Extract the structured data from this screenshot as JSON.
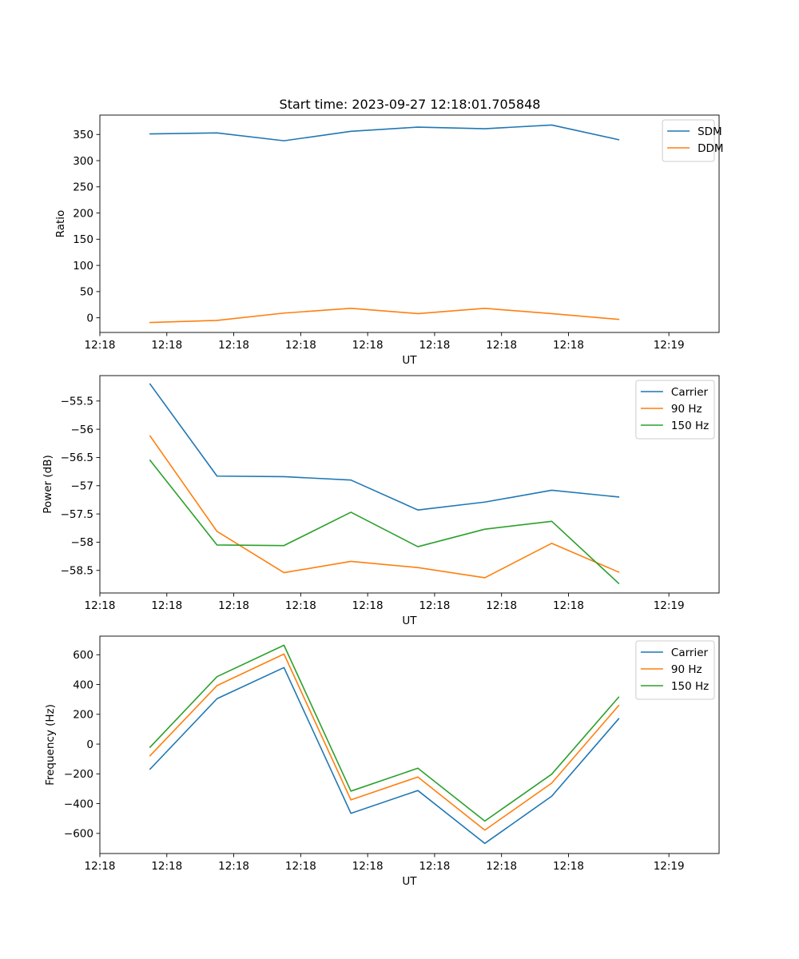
{
  "chart_data": [
    {
      "type": "line",
      "title": "Start time: 2023-09-27 12:18:01.705848",
      "xlabel": "UT",
      "ylabel": "Ratio",
      "x_tick_labels": [
        "12:18",
        "12:18",
        "12:18",
        "12:18",
        "12:18",
        "12:18",
        "12:18"
      ],
      "x_tick_end_label": "12:19",
      "xlim": [
        0,
        9.25
      ],
      "x": [
        0.75,
        1.75,
        2.75,
        3.75,
        4.75,
        5.75,
        6.75,
        7.75
      ],
      "ylim": [
        -28,
        387
      ],
      "yticks": [
        0,
        50,
        100,
        150,
        200,
        250,
        300,
        350
      ],
      "legend_position": "top-right",
      "series": [
        {
          "name": "SDM",
          "color": "#1f77b4",
          "values": [
            351,
            353,
            338,
            356,
            364,
            361,
            368,
            340
          ]
        },
        {
          "name": "DDM",
          "color": "#ff7f0e",
          "values": [
            -9,
            -5,
            9,
            18,
            8,
            18,
            8,
            -3
          ]
        }
      ]
    },
    {
      "type": "line",
      "title": "",
      "xlabel": "UT",
      "ylabel": "Power (dB)",
      "x_tick_labels": [
        "12:18",
        "12:18",
        "12:18",
        "12:18",
        "12:18",
        "12:18",
        "12:18"
      ],
      "x_tick_end_label": "12:19",
      "xlim": [
        0,
        9.25
      ],
      "x": [
        0.75,
        1.75,
        2.75,
        3.75,
        4.75,
        5.75,
        6.75,
        7.75
      ],
      "ylim": [
        -58.9,
        -55.05
      ],
      "yticks": [
        -58.5,
        -58.0,
        -57.5,
        -57.0,
        -56.5,
        -56.0,
        -55.5
      ],
      "legend_position": "top-right",
      "series": [
        {
          "name": "Carrier",
          "color": "#1f77b4",
          "values": [
            -55.2,
            -56.83,
            -56.84,
            -56.9,
            -57.43,
            -57.29,
            -57.08,
            -57.2
          ]
        },
        {
          "name": "90 Hz",
          "color": "#ff7f0e",
          "values": [
            -56.12,
            -57.81,
            -58.54,
            -58.34,
            -58.45,
            -58.63,
            -58.02,
            -58.53
          ]
        },
        {
          "name": "150 Hz",
          "color": "#2ca02c",
          "values": [
            -56.55,
            -58.05,
            -58.06,
            -57.47,
            -58.08,
            -57.77,
            -57.63,
            -58.73
          ]
        }
      ]
    },
    {
      "type": "line",
      "title": "",
      "xlabel": "UT",
      "ylabel": "Frequency (Hz)",
      "x_tick_labels": [
        "12:18",
        "12:18",
        "12:18",
        "12:18",
        "12:18",
        "12:18",
        "12:18"
      ],
      "x_tick_end_label": "12:19",
      "xlim": [
        0,
        9.25
      ],
      "x": [
        0.75,
        1.75,
        2.75,
        3.75,
        4.75,
        5.75,
        6.75,
        7.75
      ],
      "ylim": [
        -735,
        725
      ],
      "yticks": [
        -600,
        -400,
        -200,
        0,
        200,
        400,
        600
      ],
      "legend_position": "top-right",
      "series": [
        {
          "name": "Carrier",
          "color": "#1f77b4",
          "values": [
            -168,
            305,
            514,
            -465,
            -312,
            -667,
            -350,
            170
          ]
        },
        {
          "name": "90 Hz",
          "color": "#ff7f0e",
          "values": [
            -78,
            393,
            605,
            -375,
            -221,
            -578,
            -262,
            259
          ]
        },
        {
          "name": "150 Hz",
          "color": "#2ca02c",
          "values": [
            -21,
            453,
            664,
            -316,
            -162,
            -517,
            -202,
            315
          ]
        }
      ]
    }
  ]
}
